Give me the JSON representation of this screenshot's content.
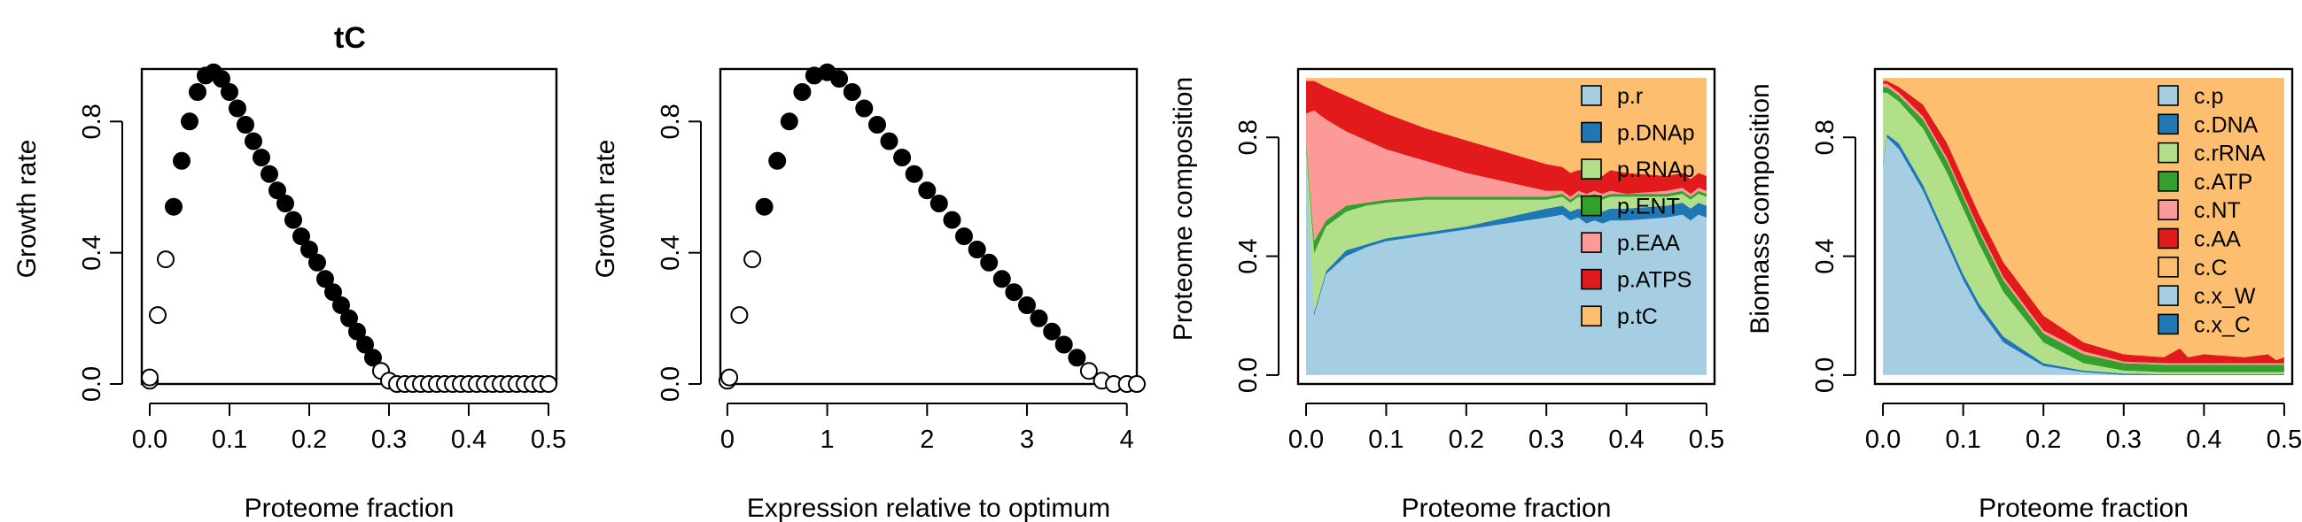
{
  "figure_title": "tC",
  "colors": {
    "open_marker": "#000000",
    "filled_marker": "#000000",
    "p.r": "#a6cee3",
    "p.DNAp": "#1f78b4",
    "p.RNAp": "#b2df8a",
    "p.ENT": "#33a02c",
    "p.EAA": "#fb9a99",
    "p.ATPS": "#e31a1c",
    "p.tC": "#fdbf6f",
    "c.p": "#a6cee3",
    "c.DNA": "#1f78b4",
    "c.rRNA": "#b2df8a",
    "c.ATP": "#33a02c",
    "c.NT": "#fb9a99",
    "c.AA": "#e31a1c",
    "c.C": "#fdbf6f",
    "c.x_W": "#a6cee3",
    "c.x_C": "#1f78b4"
  },
  "chart_data": [
    {
      "type": "scatter",
      "title": "tC",
      "xlabel": "Proteome fraction",
      "ylabel": "Growth rate",
      "xlim": [
        -0.01,
        0.51
      ],
      "ylim": [
        0,
        0.96
      ],
      "xticks": [
        0.0,
        0.1,
        0.2,
        0.3,
        0.4,
        0.5
      ],
      "xtick_labels": [
        "0.0",
        "0.1",
        "0.2",
        "0.3",
        "0.4",
        "0.5"
      ],
      "yticks": [
        0.0,
        0.4,
        0.8
      ],
      "ytick_labels": [
        "0.0",
        "0.4",
        "0.8"
      ],
      "marker_style_note": "filled = feasible (black), open = infeasible/zero",
      "x": [
        0.0,
        0.0,
        0.01,
        0.02,
        0.03,
        0.04,
        0.05,
        0.06,
        0.07,
        0.08,
        0.09,
        0.1,
        0.11,
        0.12,
        0.13,
        0.14,
        0.15,
        0.16,
        0.17,
        0.18,
        0.19,
        0.2,
        0.21,
        0.22,
        0.23,
        0.24,
        0.25,
        0.26,
        0.27,
        0.28,
        0.29,
        0.3,
        0.31,
        0.32,
        0.33,
        0.34,
        0.35,
        0.36,
        0.37,
        0.38,
        0.39,
        0.4,
        0.41,
        0.42,
        0.43,
        0.44,
        0.45,
        0.46,
        0.47,
        0.48,
        0.49,
        0.5
      ],
      "y": [
        0.01,
        0.02,
        0.21,
        0.38,
        0.54,
        0.68,
        0.8,
        0.89,
        0.94,
        0.95,
        0.93,
        0.89,
        0.84,
        0.79,
        0.74,
        0.69,
        0.64,
        0.59,
        0.55,
        0.5,
        0.45,
        0.41,
        0.37,
        0.32,
        0.28,
        0.24,
        0.2,
        0.16,
        0.12,
        0.08,
        0.04,
        0.01,
        0.0,
        0.0,
        0.0,
        0.0,
        0.0,
        0.0,
        0.0,
        0.0,
        0.0,
        0.0,
        0.0,
        0.0,
        0.0,
        0.0,
        0.0,
        0.0,
        0.0,
        0.0,
        0.0,
        0.0
      ],
      "filled": [
        false,
        false,
        false,
        false,
        true,
        true,
        true,
        true,
        true,
        true,
        true,
        true,
        true,
        true,
        true,
        true,
        true,
        true,
        true,
        true,
        true,
        true,
        true,
        true,
        true,
        true,
        true,
        true,
        true,
        true,
        false,
        false,
        false,
        false,
        false,
        false,
        false,
        false,
        false,
        false,
        false,
        false,
        false,
        false,
        false,
        false,
        false,
        false,
        false,
        false,
        false,
        false
      ]
    },
    {
      "type": "scatter",
      "title": "",
      "xlabel": "Expression relative to optimum",
      "ylabel": "Growth rate",
      "xlim": [
        -0.07,
        4.1
      ],
      "ylim": [
        0,
        0.96
      ],
      "xticks": [
        0,
        1,
        2,
        3,
        4
      ],
      "xtick_labels": [
        "0",
        "1",
        "2",
        "3",
        "4"
      ],
      "yticks": [
        0.0,
        0.4,
        0.8
      ],
      "ytick_labels": [
        "0.0",
        "0.4",
        "0.8"
      ],
      "x": [
        0.0,
        0.02,
        0.12,
        0.25,
        0.37,
        0.5,
        0.62,
        0.75,
        0.87,
        1.0,
        1.12,
        1.25,
        1.37,
        1.5,
        1.62,
        1.75,
        1.87,
        2.0,
        2.12,
        2.25,
        2.37,
        2.5,
        2.62,
        2.75,
        2.87,
        3.0,
        3.12,
        3.25,
        3.37,
        3.5,
        3.62,
        3.75,
        3.87,
        4.0,
        4.1
      ],
      "y": [
        0.01,
        0.02,
        0.21,
        0.38,
        0.54,
        0.68,
        0.8,
        0.89,
        0.94,
        0.95,
        0.93,
        0.89,
        0.84,
        0.79,
        0.74,
        0.69,
        0.64,
        0.59,
        0.55,
        0.5,
        0.45,
        0.41,
        0.37,
        0.32,
        0.28,
        0.24,
        0.2,
        0.16,
        0.12,
        0.08,
        0.04,
        0.01,
        0.0,
        0.0,
        0.0
      ],
      "filled": [
        false,
        false,
        false,
        false,
        true,
        true,
        true,
        true,
        true,
        true,
        true,
        true,
        true,
        true,
        true,
        true,
        true,
        true,
        true,
        true,
        true,
        true,
        true,
        true,
        true,
        true,
        true,
        true,
        true,
        true,
        false,
        false,
        false,
        false,
        false
      ]
    },
    {
      "type": "area",
      "title": "",
      "xlabel": "Proteome fraction",
      "ylabel": "Proteome composition",
      "xlim": [
        -0.01,
        0.51
      ],
      "ylim": [
        -0.03,
        1.03
      ],
      "xticks": [
        0.0,
        0.1,
        0.2,
        0.3,
        0.4,
        0.5
      ],
      "xtick_labels": [
        "0.0",
        "0.1",
        "0.2",
        "0.3",
        "0.4",
        "0.5"
      ],
      "yticks": [
        0.0,
        0.4,
        0.8
      ],
      "ytick_labels": [
        "0.0",
        "0.4",
        "0.8"
      ],
      "legend": "top-right",
      "legend_entries": [
        "p.r",
        "p.DNAp",
        "p.RNAp",
        "p.ENT",
        "p.EAA",
        "p.ATPS",
        "p.tC"
      ],
      "x": [
        0.0,
        0.01,
        0.025,
        0.05,
        0.075,
        0.1,
        0.15,
        0.2,
        0.25,
        0.3,
        0.32,
        0.33,
        0.34,
        0.35,
        0.36,
        0.37,
        0.38,
        0.4,
        0.45,
        0.47,
        0.48,
        0.49,
        0.5
      ],
      "series": [
        {
          "name": "p.r",
          "cumulative_top": [
            0.7,
            0.2,
            0.34,
            0.4,
            0.43,
            0.45,
            0.47,
            0.49,
            0.51,
            0.53,
            0.54,
            0.52,
            0.53,
            0.51,
            0.52,
            0.51,
            0.52,
            0.52,
            0.53,
            0.54,
            0.52,
            0.54,
            0.53
          ]
        },
        {
          "name": "p.DNAp",
          "cumulative_top": [
            0.71,
            0.21,
            0.35,
            0.42,
            0.44,
            0.46,
            0.48,
            0.5,
            0.53,
            0.56,
            0.57,
            0.55,
            0.56,
            0.55,
            0.56,
            0.55,
            0.56,
            0.56,
            0.57,
            0.58,
            0.56,
            0.58,
            0.57
          ]
        },
        {
          "name": "p.RNAp",
          "cumulative_top": [
            0.76,
            0.41,
            0.5,
            0.55,
            0.57,
            0.58,
            0.59,
            0.59,
            0.59,
            0.59,
            0.6,
            0.58,
            0.6,
            0.59,
            0.6,
            0.59,
            0.6,
            0.6,
            0.6,
            0.61,
            0.59,
            0.61,
            0.6
          ]
        },
        {
          "name": "p.ENT",
          "cumulative_top": [
            0.78,
            0.45,
            0.52,
            0.57,
            0.58,
            0.59,
            0.6,
            0.6,
            0.6,
            0.6,
            0.61,
            0.59,
            0.61,
            0.6,
            0.61,
            0.6,
            0.61,
            0.61,
            0.61,
            0.62,
            0.6,
            0.62,
            0.61
          ]
        },
        {
          "name": "p.EAA",
          "cumulative_top": [
            0.88,
            0.89,
            0.86,
            0.82,
            0.79,
            0.76,
            0.72,
            0.68,
            0.65,
            0.62,
            0.62,
            0.6,
            0.62,
            0.61,
            0.62,
            0.61,
            0.62,
            0.61,
            0.62,
            0.63,
            0.61,
            0.63,
            0.62
          ]
        },
        {
          "name": "p.ATPS",
          "cumulative_top": [
            0.99,
            0.99,
            0.97,
            0.94,
            0.91,
            0.88,
            0.83,
            0.79,
            0.75,
            0.71,
            0.7,
            0.68,
            0.69,
            0.69,
            0.7,
            0.67,
            0.69,
            0.68,
            0.67,
            0.68,
            0.66,
            0.68,
            0.67
          ]
        },
        {
          "name": "p.tC",
          "cumulative_top": [
            1.0,
            1.0,
            1.0,
            1.0,
            1.0,
            1.0,
            1.0,
            1.0,
            1.0,
            1.0,
            1.0,
            1.0,
            1.0,
            1.0,
            1.0,
            1.0,
            1.0,
            1.0,
            1.0,
            1.0,
            1.0,
            1.0,
            1.0
          ]
        }
      ]
    },
    {
      "type": "area",
      "title": "",
      "xlabel": "Proteome fraction",
      "ylabel": "Biomass composition",
      "xlim": [
        -0.01,
        0.51
      ],
      "ylim": [
        -0.03,
        1.03
      ],
      "xticks": [
        0.0,
        0.1,
        0.2,
        0.3,
        0.4,
        0.5
      ],
      "xtick_labels": [
        "0.0",
        "0.1",
        "0.2",
        "0.3",
        "0.4",
        "0.5"
      ],
      "yticks": [
        0.0,
        0.4,
        0.8
      ],
      "ytick_labels": [
        "0.0",
        "0.4",
        "0.8"
      ],
      "legend": "top-right",
      "legend_entries": [
        "c.p",
        "c.DNA",
        "c.rRNA",
        "c.ATP",
        "c.NT",
        "c.AA",
        "c.C",
        "c.x_W",
        "c.x_C"
      ],
      "x": [
        0.0,
        0.005,
        0.02,
        0.05,
        0.08,
        0.1,
        0.12,
        0.15,
        0.2,
        0.25,
        0.3,
        0.35,
        0.37,
        0.38,
        0.4,
        0.45,
        0.48,
        0.49,
        0.5
      ],
      "series": [
        {
          "name": "c.p",
          "cumulative_top": [
            0.7,
            0.8,
            0.76,
            0.62,
            0.44,
            0.32,
            0.22,
            0.11,
            0.03,
            0.01,
            0.0,
            0.0,
            0.0,
            0.0,
            0.0,
            0.0,
            0.0,
            0.0,
            0.0
          ]
        },
        {
          "name": "c.DNA",
          "cumulative_top": [
            0.71,
            0.81,
            0.78,
            0.64,
            0.46,
            0.34,
            0.24,
            0.13,
            0.04,
            0.015,
            0.005,
            0.003,
            0.003,
            0.003,
            0.003,
            0.003,
            0.003,
            0.003,
            0.003
          ]
        },
        {
          "name": "c.rRNA",
          "cumulative_top": [
            0.95,
            0.95,
            0.92,
            0.83,
            0.68,
            0.56,
            0.44,
            0.28,
            0.11,
            0.04,
            0.015,
            0.01,
            0.01,
            0.01,
            0.01,
            0.01,
            0.01,
            0.01,
            0.01
          ]
        },
        {
          "name": "c.ATP",
          "cumulative_top": [
            0.97,
            0.97,
            0.94,
            0.86,
            0.72,
            0.6,
            0.48,
            0.32,
            0.14,
            0.07,
            0.04,
            0.035,
            0.035,
            0.035,
            0.035,
            0.035,
            0.035,
            0.035,
            0.035
          ]
        },
        {
          "name": "c.NT",
          "cumulative_top": [
            0.98,
            0.98,
            0.95,
            0.87,
            0.73,
            0.61,
            0.49,
            0.33,
            0.15,
            0.08,
            0.045,
            0.04,
            0.04,
            0.04,
            0.04,
            0.04,
            0.04,
            0.04,
            0.04
          ]
        },
        {
          "name": "c.AA",
          "cumulative_top": [
            0.99,
            0.99,
            0.97,
            0.91,
            0.78,
            0.66,
            0.54,
            0.38,
            0.2,
            0.11,
            0.07,
            0.06,
            0.09,
            0.06,
            0.07,
            0.06,
            0.07,
            0.05,
            0.06
          ]
        },
        {
          "name": "c.C",
          "cumulative_top": [
            1.0,
            1.0,
            1.0,
            1.0,
            1.0,
            1.0,
            1.0,
            1.0,
            1.0,
            1.0,
            1.0,
            1.0,
            1.0,
            1.0,
            1.0,
            1.0,
            1.0,
            1.0,
            1.0
          ]
        },
        {
          "name": "c.x_W",
          "cumulative_top": [
            1.0,
            1.0,
            1.0,
            1.0,
            1.0,
            1.0,
            1.0,
            1.0,
            1.0,
            1.0,
            1.0,
            1.0,
            1.0,
            1.0,
            1.0,
            1.0,
            1.0,
            1.0,
            1.0
          ]
        },
        {
          "name": "c.x_C",
          "cumulative_top": [
            1.0,
            1.0,
            1.0,
            1.0,
            1.0,
            1.0,
            1.0,
            1.0,
            1.0,
            1.0,
            1.0,
            1.0,
            1.0,
            1.0,
            1.0,
            1.0,
            1.0,
            1.0,
            1.0
          ]
        }
      ]
    }
  ]
}
